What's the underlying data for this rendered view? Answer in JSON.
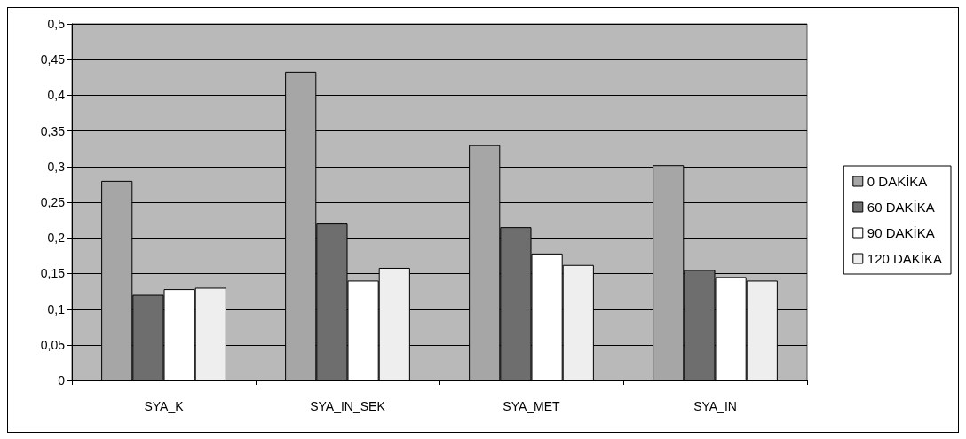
{
  "chart_data": {
    "type": "bar",
    "categories": [
      "SYA_K",
      "SYA_IN_SEK",
      "SYA_MET",
      "SYA_IN"
    ],
    "series": [
      {
        "name": "0 DAKİKA",
        "color": "#a6a6a6",
        "values": [
          0.28,
          0.433,
          0.33,
          0.302
        ]
      },
      {
        "name": "60 DAKİKA",
        "color": "#6e6e6e",
        "values": [
          0.12,
          0.22,
          0.215,
          0.155
        ]
      },
      {
        "name": "90 DAKİKA",
        "color": "#ffffff",
        "values": [
          0.128,
          0.14,
          0.178,
          0.145
        ]
      },
      {
        "name": "120 DAKİKA",
        "color": "#eeeeee",
        "values": [
          0.13,
          0.158,
          0.162,
          0.14
        ]
      }
    ],
    "ylim": [
      0,
      0.5
    ],
    "yticks": [
      0,
      {
        "value": 0.05,
        "label": "0,05"
      },
      {
        "value": 0.1,
        "label": "0,1"
      },
      {
        "value": 0.15,
        "label": "0,15"
      },
      {
        "value": 0.2,
        "label": "0,2"
      },
      {
        "value": 0.25,
        "label": "0,25"
      },
      {
        "value": 0.3,
        "label": "0,3"
      },
      {
        "value": 0.35,
        "label": "0,35"
      },
      {
        "value": 0.4,
        "label": "0,4"
      },
      {
        "value": 0.45,
        "label": "0,45"
      },
      {
        "value": 0.5,
        "label": "0,5"
      }
    ],
    "grid": "y",
    "legend": "right"
  }
}
